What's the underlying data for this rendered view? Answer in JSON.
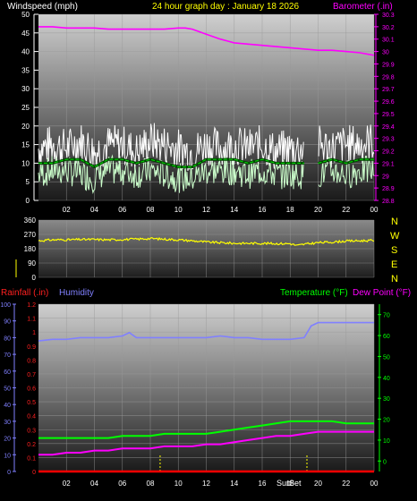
{
  "header": {
    "left_label": "Windspeed (mph)",
    "center_label": "24 hour graph day : January 18 2026",
    "right_label": "Barometer (.in)"
  },
  "colors": {
    "wind_gust": "#ffffff",
    "wind_avg": "#ccffcc",
    "wind_avg_line": "#00cc00",
    "barometer": "#ff00ff",
    "direction": "#ffff00",
    "humidity": "#8080ff",
    "temperature": "#00ff00",
    "dewpoint": "#ff00ff",
    "rainfall": "#ff0000",
    "sun_marker": "#ffff00"
  },
  "direction_axis": {
    "compass_labels": [
      "N",
      "W",
      "S",
      "E",
      "N"
    ]
  },
  "lower_header": {
    "rainfall_label": "Rainfall (.in)",
    "humidity_label": "Humidity",
    "temperature_label": "Temperature (°F)",
    "dewpoint_label": "Dew Point (°F)"
  },
  "sun_labels": {
    "sunrise": "Sun",
    "sunset": "Set"
  },
  "chart_data": [
    {
      "type": "line",
      "panel": "wind",
      "x_ticks": [
        "02",
        "04",
        "06",
        "08",
        "10",
        "12",
        "14",
        "16",
        "18",
        "20",
        "22",
        "00"
      ],
      "xlim": [
        0,
        24
      ],
      "ylim": [
        0,
        50
      ],
      "y_ticks": [
        0,
        5,
        10,
        15,
        20,
        25,
        30,
        35,
        40,
        45,
        50
      ],
      "ylim_right": [
        28.8,
        30.3
      ],
      "y_ticks_right": [
        "28.8",
        "28.9",
        "29",
        "29.1",
        "29.2",
        "29.3",
        "29.4",
        "29.5",
        "29.6",
        "29.7",
        "29.8",
        "29.9",
        "30",
        "30.1",
        "30.2",
        "30.3"
      ],
      "series": [
        {
          "axis": "right",
          "x": [
            0,
            1,
            2,
            3,
            4,
            5,
            6,
            7,
            8,
            9,
            10,
            10.5,
            11,
            12,
            13,
            14,
            15,
            16,
            17,
            18,
            19,
            20,
            21,
            22,
            23,
            24
          ],
          "y": [
            30.2,
            30.2,
            30.19,
            30.19,
            30.19,
            30.18,
            30.18,
            30.18,
            30.18,
            30.18,
            30.19,
            30.19,
            30.18,
            30.14,
            30.1,
            30.07,
            30.06,
            30.05,
            30.04,
            30.03,
            30.02,
            30.01,
            30.01,
            30.0,
            29.99,
            29.97
          ]
        },
        {
          "x": [
            0,
            1,
            2,
            3,
            4,
            5,
            6,
            7,
            8,
            9,
            10,
            11,
            12,
            13,
            14,
            15,
            16,
            17,
            18,
            19,
            19.5,
            20,
            21,
            22,
            23,
            24
          ],
          "y": [
            14,
            15,
            14,
            16,
            13,
            15,
            15,
            13,
            16,
            15,
            14,
            13,
            15,
            14,
            15,
            14,
            15,
            13,
            14,
            14,
            null,
            15,
            14,
            15,
            15,
            16
          ]
        },
        {
          "x": [
            0,
            1,
            2,
            3,
            4,
            5,
            6,
            7,
            8,
            9,
            10,
            11,
            12,
            13,
            14,
            15,
            16,
            17,
            18,
            19,
            19.5,
            20,
            21,
            22,
            23,
            24
          ],
          "y": [
            7,
            8,
            8,
            7,
            6,
            8,
            8,
            7,
            8,
            7,
            6,
            6,
            8,
            8,
            8,
            7,
            8,
            7,
            7,
            7,
            null,
            7,
            8,
            7,
            8,
            8
          ]
        },
        {
          "x": [
            0,
            1,
            2,
            3,
            4,
            5,
            6,
            7,
            8,
            9,
            10,
            11,
            12,
            13,
            14,
            15,
            16,
            17,
            18,
            19,
            19.5,
            20,
            21,
            22,
            23,
            24
          ],
          "y": [
            10,
            10,
            11,
            11,
            9,
            11,
            11,
            10,
            11,
            10,
            9,
            9,
            11,
            11,
            11,
            10,
            11,
            10,
            10,
            10,
            null,
            10,
            11,
            10,
            11,
            11
          ]
        }
      ]
    },
    {
      "type": "line",
      "panel": "direction",
      "x_ticks": [],
      "xlim": [
        0,
        24
      ],
      "ylim": [
        0,
        360
      ],
      "y_ticks": [
        0,
        90,
        180,
        270,
        360
      ],
      "series": [
        {
          "x": [
            0,
            1,
            2,
            3,
            4,
            5,
            6,
            7,
            8,
            9,
            10,
            11,
            12,
            13,
            14,
            15,
            16,
            17,
            18,
            18.5,
            19,
            20,
            21,
            22,
            23,
            24
          ],
          "y": [
            230,
            236,
            236,
            238,
            238,
            236,
            238,
            240,
            244,
            240,
            236,
            230,
            222,
            218,
            214,
            214,
            214,
            212,
            212,
            200,
            208,
            218,
            222,
            228,
            230,
            232
          ]
        }
      ]
    },
    {
      "type": "line",
      "panel": "humidity-rain",
      "x_ticks": [
        "02",
        "04",
        "06",
        "08",
        "10",
        "12",
        "14",
        "16",
        "18",
        "20",
        "22",
        "00"
      ],
      "xlim": [
        0,
        24
      ],
      "ylim": [
        0,
        100
      ],
      "y_ticks": [
        0,
        10,
        20,
        30,
        40,
        50,
        60,
        70,
        80,
        90,
        100
      ],
      "ylim_rain": [
        0,
        1.2
      ],
      "y_ticks_rain": [
        "0",
        "0.1",
        "0.2",
        "0.3",
        "0.4",
        "0.5",
        "0.6",
        "0.7",
        "0.8",
        "0.9",
        "1",
        "1.1",
        "1.2"
      ],
      "ylim_temp": [
        -5,
        75
      ],
      "y_ticks_temp": [
        0,
        10,
        20,
        30,
        40,
        50,
        60,
        70
      ],
      "series": [
        {
          "axis": "humidity",
          "x": [
            0,
            1,
            2,
            3,
            4,
            5,
            6,
            6.5,
            7,
            8,
            9,
            10,
            11,
            12,
            13,
            14,
            15,
            16,
            17,
            18,
            19,
            19.5,
            20,
            21,
            22,
            23,
            24
          ],
          "y": [
            78,
            79,
            79,
            80,
            80,
            80,
            81,
            83,
            80,
            80,
            80,
            80,
            80,
            80,
            81,
            80,
            80,
            79,
            79,
            79,
            80,
            87,
            89,
            89,
            89,
            89,
            89
          ]
        },
        {
          "axis": "temp",
          "x": [
            0,
            1,
            2,
            3,
            4,
            5,
            6,
            7,
            8,
            9,
            10,
            11,
            12,
            13,
            14,
            15,
            16,
            17,
            18,
            19,
            20,
            21,
            22,
            23,
            24
          ],
          "y": [
            11,
            11,
            11,
            11,
            11,
            11,
            12,
            12,
            12,
            13,
            13,
            13,
            13,
            14,
            15,
            16,
            17,
            18,
            19,
            19,
            19,
            19,
            18,
            18,
            18
          ]
        },
        {
          "axis": "temp",
          "x": [
            0,
            1,
            2,
            3,
            4,
            5,
            6,
            7,
            8,
            9,
            10,
            11,
            12,
            13,
            14,
            15,
            16,
            17,
            18,
            19,
            20,
            21,
            22,
            23,
            24
          ],
          "y": [
            3,
            3,
            4,
            4,
            5,
            5,
            6,
            6,
            6,
            7,
            7,
            7,
            8,
            8,
            9,
            10,
            11,
            12,
            12,
            13,
            14,
            14,
            14,
            14,
            14
          ]
        },
        {
          "axis": "rain",
          "x": [
            0,
            24
          ],
          "y": [
            0,
            0
          ]
        }
      ],
      "markers": [
        8.7,
        19.2
      ]
    }
  ]
}
